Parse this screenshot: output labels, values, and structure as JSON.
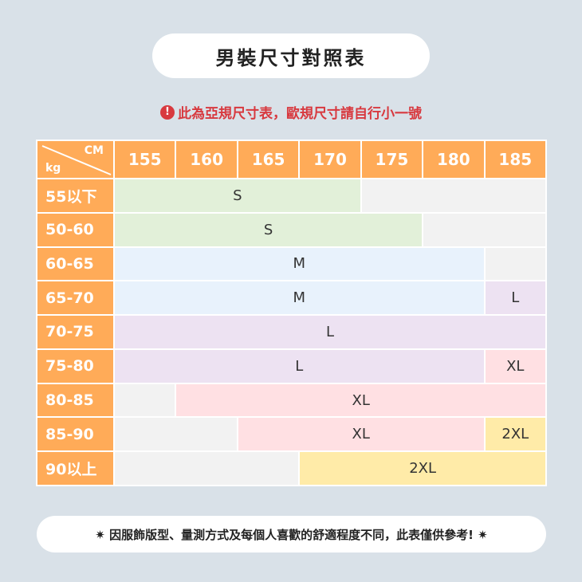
{
  "title": "男裝尺寸對照表",
  "notice": "此為亞規尺寸表，歐規尺寸請自行小一號",
  "notice_icon": "exclamation-circle-icon",
  "colors": {
    "header": "#ffab58",
    "S": "#e2f0d9",
    "M": "#e8f2fc",
    "L": "#ede2f2",
    "XL": "#ffe0e3",
    "2XL": "#ffeba8",
    "none": "#f2f2f2",
    "notice": "#d8393f"
  },
  "table": {
    "corner_top": "CM",
    "corner_bottom": "kg",
    "heights": [
      "155",
      "160",
      "165",
      "170",
      "175",
      "180",
      "185"
    ],
    "rows": [
      {
        "weight": "55以下",
        "cells": [
          {
            "size": "S",
            "span": 4
          },
          {
            "size": "",
            "span": 3
          }
        ]
      },
      {
        "weight": "50-60",
        "cells": [
          {
            "size": "S",
            "span": 5
          },
          {
            "size": "",
            "span": 2
          }
        ]
      },
      {
        "weight": "60-65",
        "cells": [
          {
            "size": "M",
            "span": 6
          },
          {
            "size": "",
            "span": 1
          }
        ]
      },
      {
        "weight": "65-70",
        "cells": [
          {
            "size": "M",
            "span": 6
          },
          {
            "size": "L",
            "span": 1
          }
        ]
      },
      {
        "weight": "70-75",
        "cells": [
          {
            "size": "L",
            "span": 7
          }
        ]
      },
      {
        "weight": "75-80",
        "cells": [
          {
            "size": "L",
            "span": 6
          },
          {
            "size": "XL",
            "span": 1
          }
        ]
      },
      {
        "weight": "80-85",
        "cells": [
          {
            "size": "",
            "span": 1
          },
          {
            "size": "XL",
            "span": 6
          }
        ]
      },
      {
        "weight": "85-90",
        "cells": [
          {
            "size": "",
            "span": 2
          },
          {
            "size": "XL",
            "span": 4
          },
          {
            "size": "2XL",
            "span": 1
          }
        ]
      },
      {
        "weight": "90以上",
        "cells": [
          {
            "size": "",
            "span": 3
          },
          {
            "size": "2XL",
            "span": 4
          }
        ]
      }
    ]
  },
  "footer": "✷ 因服飾版型、量測方式及每個人喜歡的舒適程度不同，此表僅供參考! ✷"
}
